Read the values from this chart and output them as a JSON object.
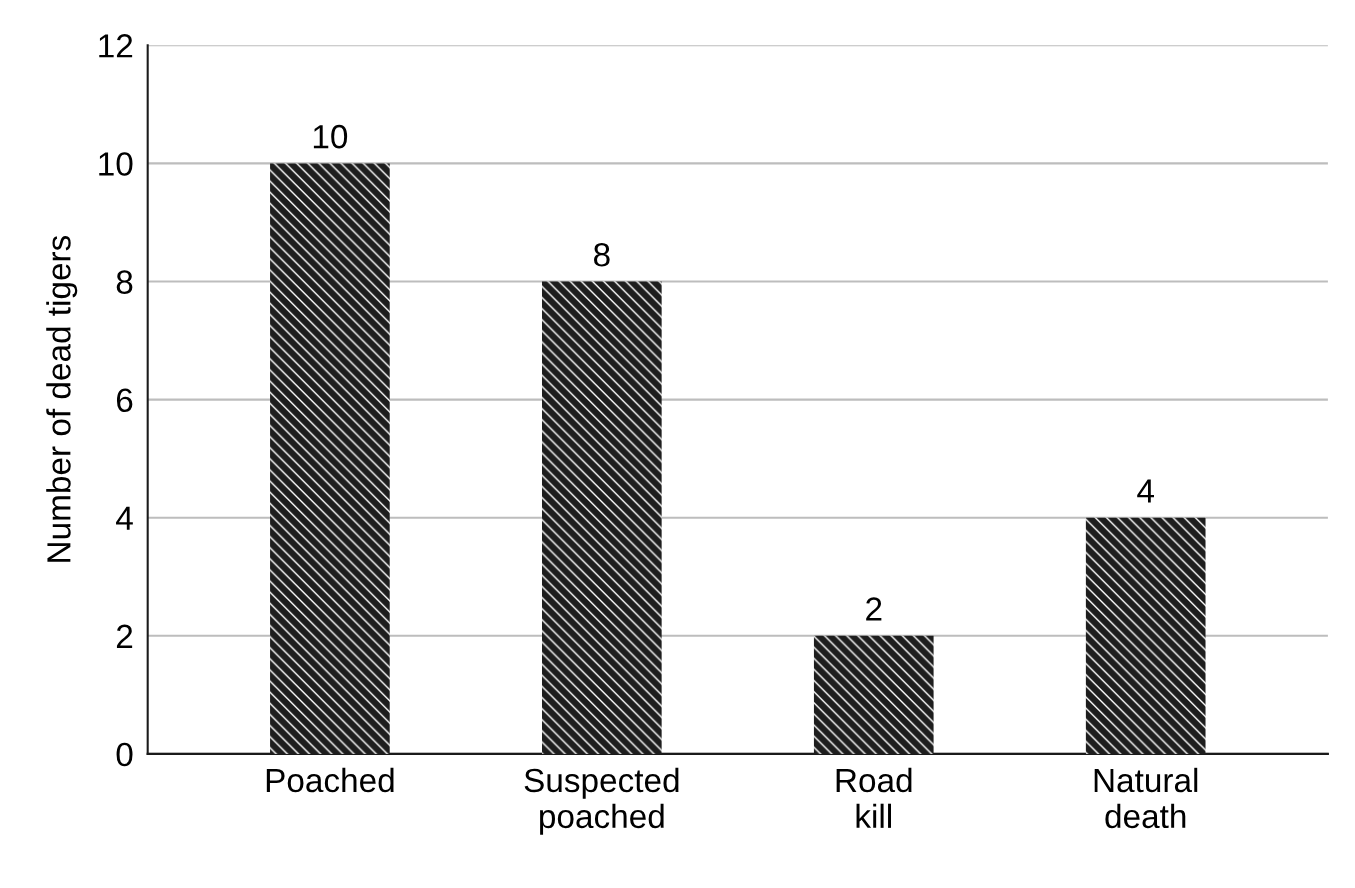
{
  "chart_data": {
    "type": "bar",
    "ylabel": "Number of dead tigers",
    "categories": [
      "Poached",
      "Suspected\npoached",
      "Road\nkill",
      "Natural\ndeath"
    ],
    "values": [
      10,
      8,
      2,
      4
    ],
    "color": "#1e1e1e",
    "ylim": [
      0,
      12
    ],
    "yticks": [
      0,
      2,
      4,
      6,
      8,
      10,
      12
    ],
    "grid": "y",
    "data_labels": true
  }
}
